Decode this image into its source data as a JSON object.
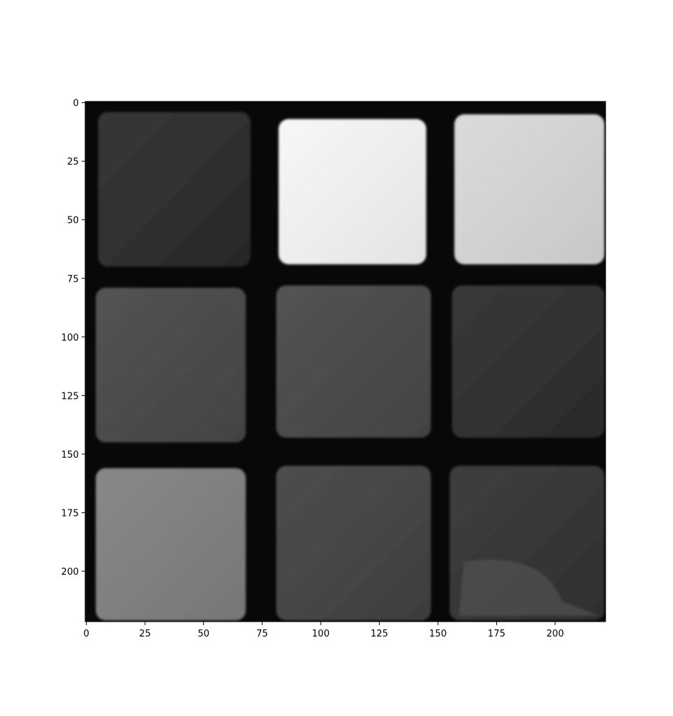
{
  "chart_data": {
    "type": "heatmap",
    "title": "",
    "xlabel": "",
    "ylabel": "",
    "colormap": "gray",
    "xlim": [
      -0.5,
      221.5
    ],
    "ylim": [
      221.5,
      -0.5
    ],
    "x_ticks": [
      0,
      25,
      50,
      75,
      100,
      125,
      150,
      175,
      200
    ],
    "y_ticks": [
      0,
      25,
      50,
      75,
      100,
      125,
      150,
      175,
      200
    ],
    "grid": false,
    "image": {
      "rows": 3,
      "cols": 3,
      "description_values": "grayscale intensity 0-255 of each facelet (row-major, top to bottom)",
      "background_intensity": 8,
      "cells": [
        [
          42,
          246,
          216
        ],
        [
          72,
          72,
          44
        ],
        [
          128,
          66,
          50
        ]
      ],
      "cell_bounds": [
        [
          [
            5,
            4,
            70,
            70
          ],
          [
            82,
            7,
            145,
            69
          ],
          [
            157,
            5,
            221,
            69
          ]
        ],
        [
          [
            4,
            79,
            68,
            145
          ],
          [
            81,
            78,
            147,
            143
          ],
          [
            156,
            78,
            221,
            143
          ]
        ],
        [
          [
            4,
            156,
            68,
            221
          ],
          [
            81,
            155,
            147,
            221
          ],
          [
            155,
            155,
            221,
            221
          ]
        ]
      ]
    }
  }
}
